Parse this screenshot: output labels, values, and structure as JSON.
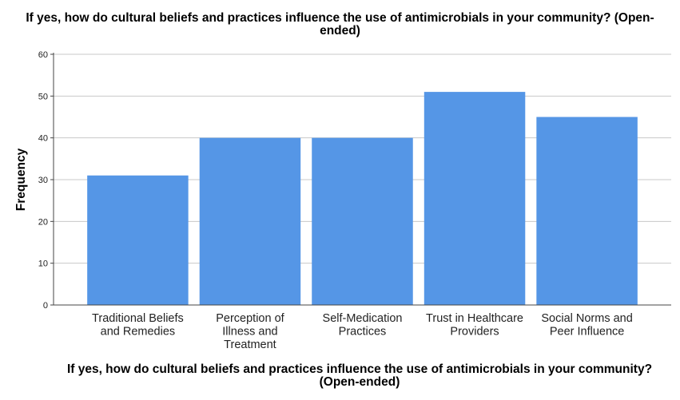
{
  "chart_data": {
    "type": "bar",
    "title_line1": "If yes, how do cultural beliefs and practices influence the use of antimicrobials in your community? (Open-",
    "title_line2": "ended)",
    "xlabel_line1": "If yes, how do cultural beliefs and practices influence the use of antimicrobials in your community?",
    "xlabel_line2": "(Open-ended)",
    "ylabel": "Frequency",
    "categories": [
      [
        "Traditional Beliefs",
        "and Remedies"
      ],
      [
        "Perception of",
        "Illness and",
        "Treatment"
      ],
      [
        "Self-Medication",
        "Practices"
      ],
      [
        "Trust in Healthcare",
        "Providers"
      ],
      [
        "Social Norms and",
        "Peer Influence"
      ]
    ],
    "values": [
      31,
      40,
      40,
      51,
      45
    ],
    "ylim": [
      0,
      60
    ],
    "yticks": [
      0,
      10,
      20,
      30,
      40,
      50,
      60
    ],
    "grid": true,
    "bar_color": "#5596e6"
  }
}
